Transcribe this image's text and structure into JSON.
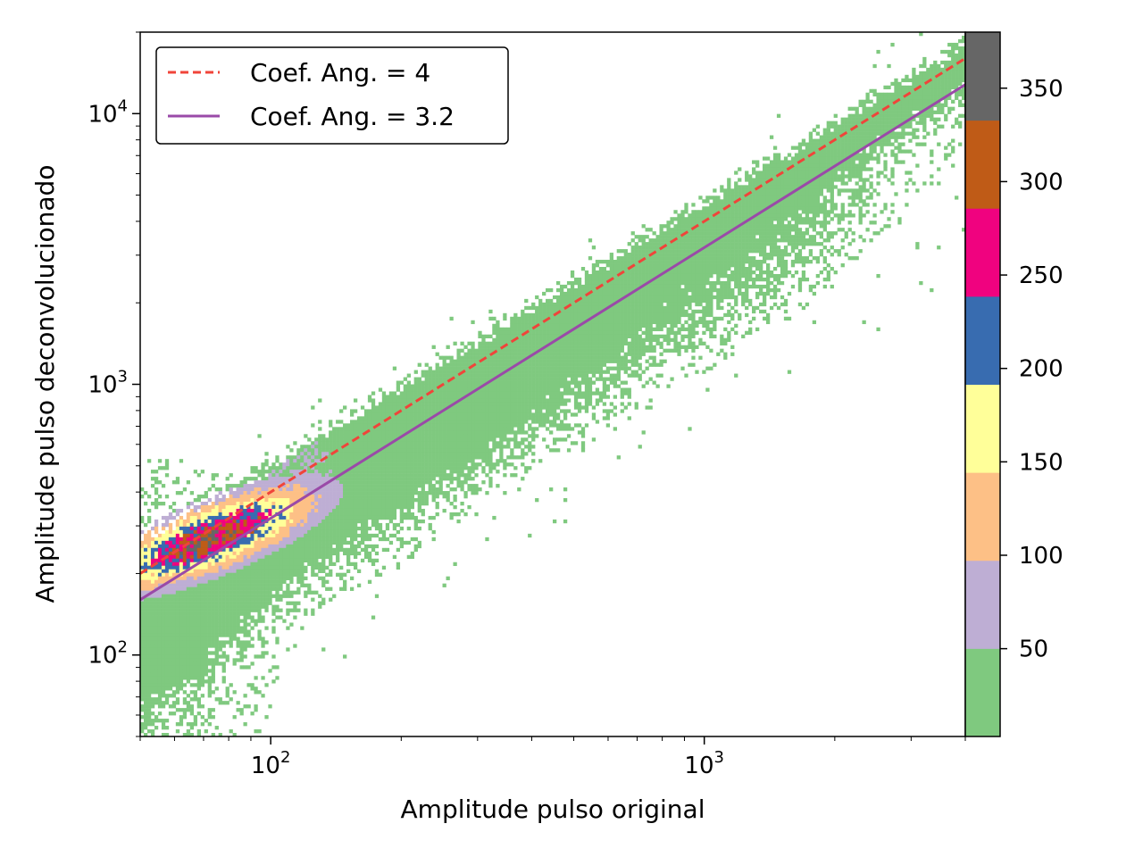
{
  "chart_data": {
    "type": "heatmap",
    "subtype": "2d-histogram",
    "xlabel": "Amplitude pulso original",
    "ylabel": "Amplitude pulso deconvolucionado",
    "xscale": "log",
    "yscale": "log",
    "xlim": [
      50,
      4000
    ],
    "ylim": [
      50,
      20000
    ],
    "x_ticks": [
      {
        "value": 100,
        "base": "10",
        "exp": "2"
      },
      {
        "value": 1000,
        "base": "10",
        "exp": "3"
      }
    ],
    "y_ticks": [
      {
        "value": 100,
        "base": "10",
        "exp": "2"
      },
      {
        "value": 1000,
        "base": "10",
        "exp": "3"
      },
      {
        "value": 10000,
        "base": "10",
        "exp": "4"
      }
    ],
    "grid": false,
    "legend_position": "upper-left",
    "lines": [
      {
        "label": "Coef. Ang. = 4",
        "slope": 4,
        "style": "dashed",
        "color": "#f0443a"
      },
      {
        "label": "Coef. Ang. = 3.2",
        "slope": 3.2,
        "style": "solid",
        "color": "#9a4aa8"
      }
    ],
    "colorbar": {
      "range": [
        3,
        380
      ],
      "ticks": [
        "50",
        "100",
        "150",
        "200",
        "250",
        "300",
        "350"
      ],
      "tick_values": [
        50,
        100,
        150,
        200,
        250,
        300,
        350
      ],
      "colormap": "Accent",
      "colors": [
        "#7fc97f",
        "#beaed4",
        "#fdc086",
        "#ffff99",
        "#386cb0",
        "#f0027f",
        "#bf5b17",
        "#666666"
      ]
    },
    "density_description": {
      "main_ridge_slope_range": [
        3.2,
        4
      ],
      "peak_region": {
        "x": [
          58,
          95
        ],
        "y": [
          215,
          390
        ],
        "max_count": 280
      },
      "secondary_band": {
        "x": [
          100,
          1500
        ],
        "y_ratio_range": [
          1.6,
          3.2
        ]
      }
    }
  }
}
